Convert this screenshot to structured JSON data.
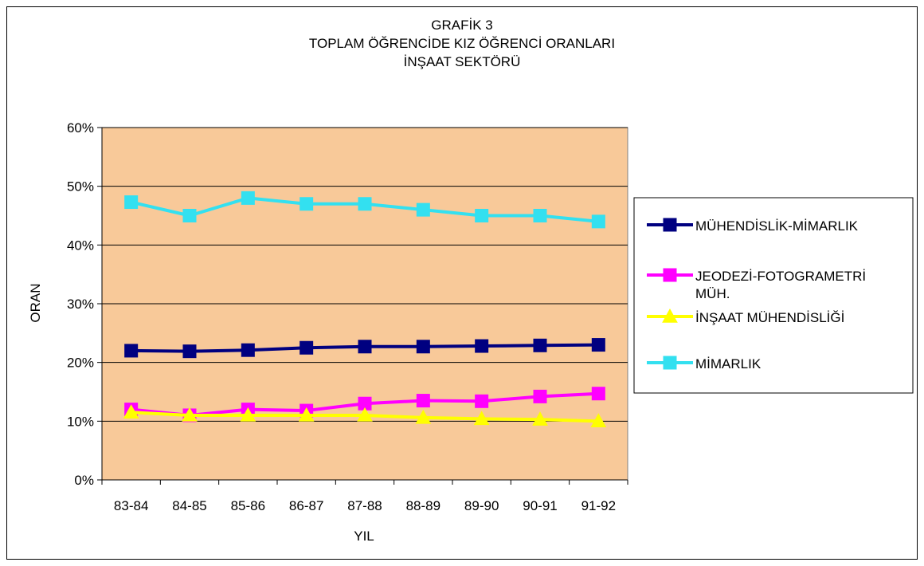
{
  "chart_data": {
    "type": "line",
    "title": [
      "GRAFİK 3",
      "TOPLAM ÖĞRENCİDE KIZ ÖĞRENCİ ORANLARI",
      "İNŞAAT SEKTÖRÜ"
    ],
    "xlabel": "YIL",
    "ylabel": "ORAN",
    "categories": [
      "83-84",
      "84-85",
      "85-86",
      "86-87",
      "87-88",
      "88-89",
      "89-90",
      "90-91",
      "91-92"
    ],
    "ylim": [
      0,
      60
    ],
    "yticks": [
      "0%",
      "10%",
      "20%",
      "30%",
      "40%",
      "50%",
      "60%"
    ],
    "grid": true,
    "plot_background": "#F8C999",
    "legend_position": "right",
    "series": [
      {
        "name": "MÜHENDİSLİK-MİMARLIK",
        "color": "#000080",
        "marker": "square",
        "values": [
          22.0,
          21.9,
          22.1,
          22.5,
          22.7,
          22.7,
          22.8,
          22.9,
          23.0
        ]
      },
      {
        "name": "JEODEZİ-FOTOGRAMETRİ MÜH.",
        "legend_lines": [
          "JEODEZİ-FOTOGRAMETRİ",
          "MÜH."
        ],
        "color": "#FF00FF",
        "marker": "square",
        "values": [
          12.0,
          11.0,
          12.0,
          11.8,
          13.0,
          13.5,
          13.4,
          14.2,
          14.7
        ]
      },
      {
        "name": "İNŞAAT MÜHENDİSLİĞİ",
        "color": "#FFFF00",
        "marker": "triangle",
        "values": [
          11.5,
          11.0,
          11.0,
          11.0,
          11.0,
          10.6,
          10.4,
          10.3,
          10.0
        ]
      },
      {
        "name": "MİMARLIK",
        "color": "#33E0F0",
        "marker": "square",
        "values": [
          47.3,
          45.0,
          48.0,
          47.0,
          47.0,
          46.0,
          45.0,
          45.0,
          44.0
        ]
      }
    ]
  }
}
